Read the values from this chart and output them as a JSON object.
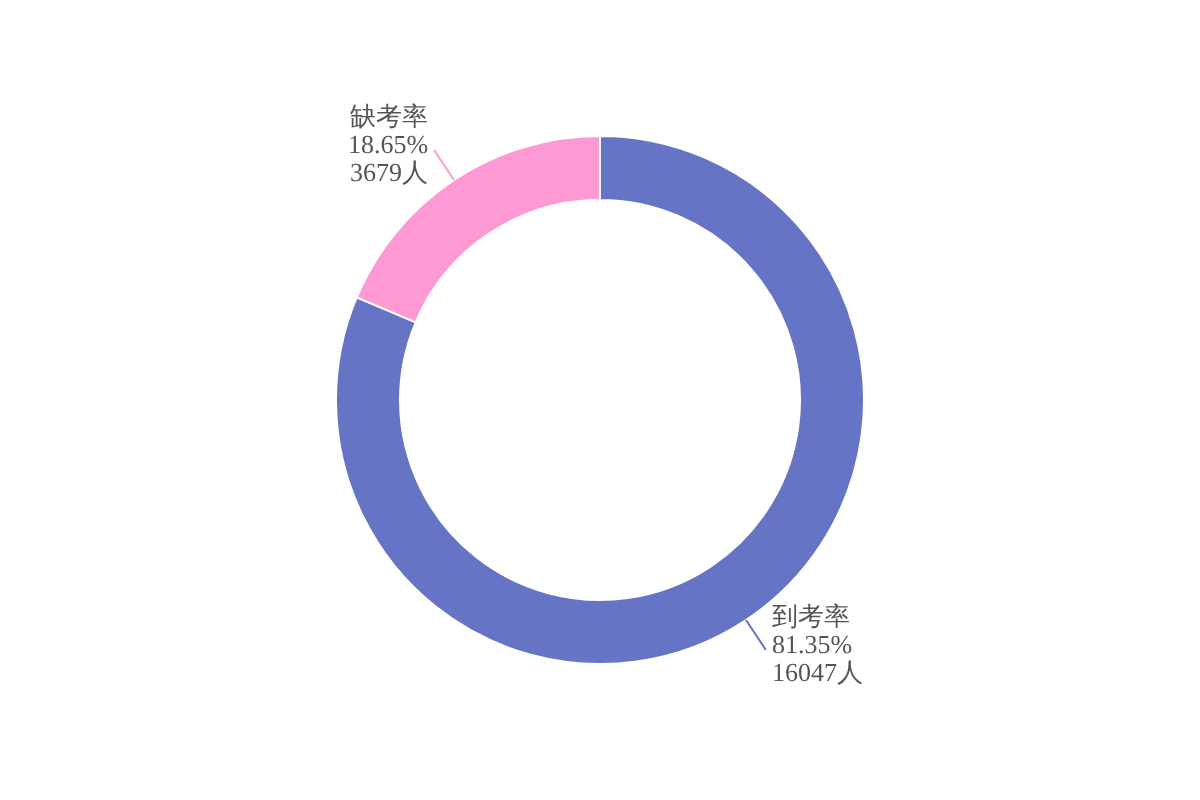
{
  "chart_data": {
    "type": "donut",
    "categories": [
      "到考率",
      "缺考率"
    ],
    "values": [
      16047,
      3679
    ],
    "colors": [
      "#6574c4",
      "#ff99d4"
    ],
    "value_labels": [
      "81.35%\n16047人",
      "18.65%\n3679人"
    ]
  }
}
